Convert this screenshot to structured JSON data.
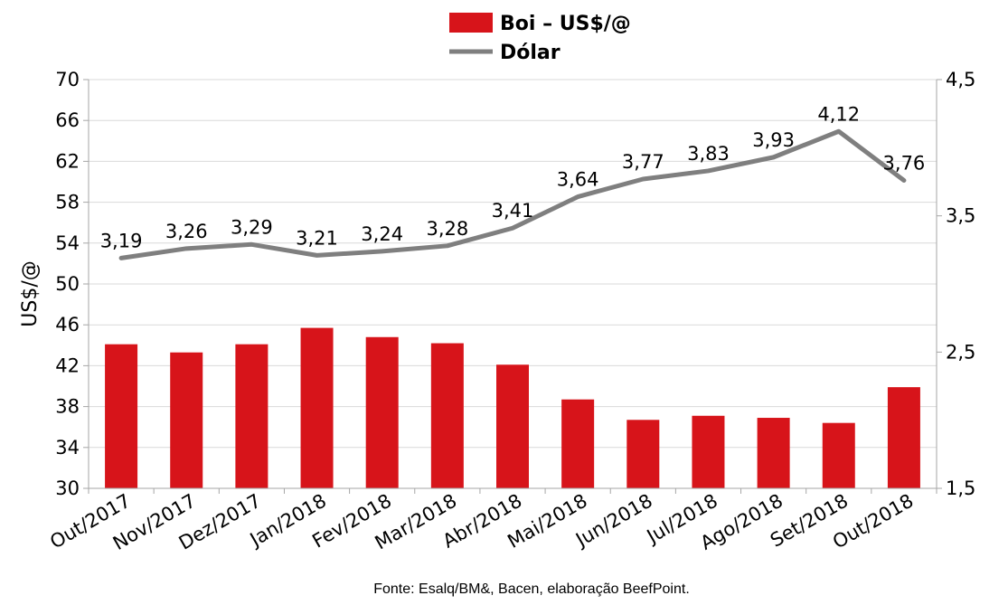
{
  "chart_data": {
    "type": "bar+line",
    "categories": [
      "Out/2017",
      "Nov/2017",
      "Dez/2017",
      "Jan/2018",
      "Fev/2018",
      "Mar/2018",
      "Abr/2018",
      "Mai/2018",
      "Jun/2018",
      "Jul/2018",
      "Ago/2018",
      "Set/2018",
      "Out/2018"
    ],
    "series": [
      {
        "name": "Boi – US$/@",
        "type": "bar",
        "axis": "left",
        "color": "#d7141a",
        "values": [
          44.1,
          43.3,
          44.1,
          45.7,
          44.8,
          44.2,
          42.1,
          38.7,
          36.7,
          37.1,
          36.9,
          36.4,
          39.9
        ]
      },
      {
        "name": "Dólar",
        "type": "line",
        "axis": "right",
        "color": "#7f7f7f",
        "values": [
          3.19,
          3.26,
          3.29,
          3.21,
          3.24,
          3.28,
          3.41,
          3.64,
          3.77,
          3.83,
          3.93,
          4.12,
          3.76
        ],
        "labels": [
          "3,19",
          "3,26",
          "3,29",
          "3,21",
          "3,24",
          "3,28",
          "3,41",
          "3,64",
          "3,77",
          "3,83",
          "3,93",
          "4,12",
          "3,76"
        ]
      }
    ],
    "ylabel": "US$/@",
    "ylim": [
      30,
      70
    ],
    "yticks": [
      "30",
      "34",
      "38",
      "42",
      "46",
      "50",
      "54",
      "58",
      "62",
      "66",
      "70"
    ],
    "y2lim": [
      1.5,
      4.5
    ],
    "y2ticks": [
      "1,5",
      "2,5",
      "3,5",
      "4,5"
    ],
    "grid": true,
    "legend": "top-center",
    "source": "Fonte: Esalq/BM&, Bacen, elaboração BeefPoint."
  }
}
